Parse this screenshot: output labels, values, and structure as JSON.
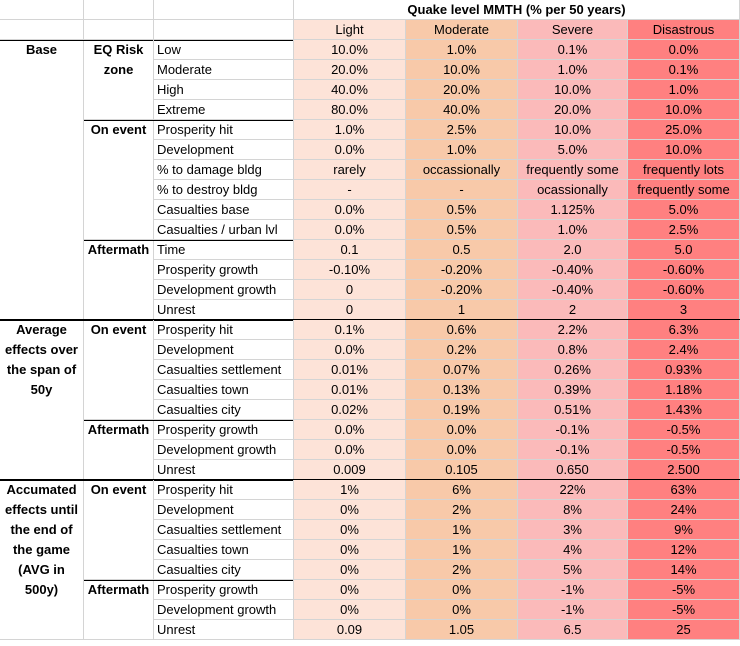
{
  "header": {
    "title": "Quake level MMTH (% per 50 years)",
    "columns": [
      "Light",
      "Moderate",
      "Severe",
      "Disastrous"
    ]
  },
  "sections": [
    {
      "label": "Base",
      "groups": [
        {
          "label": "EQ Risk zone",
          "rows": [
            {
              "label": "Low",
              "cells": [
                "10.0%",
                "1.0%",
                "0.1%",
                "0.0%"
              ]
            },
            {
              "label": "Moderate",
              "cells": [
                "20.0%",
                "10.0%",
                "1.0%",
                "0.1%"
              ]
            },
            {
              "label": "High",
              "cells": [
                "40.0%",
                "20.0%",
                "10.0%",
                "1.0%"
              ]
            },
            {
              "label": "Extreme",
              "cells": [
                "80.0%",
                "40.0%",
                "20.0%",
                "10.0%"
              ]
            }
          ]
        },
        {
          "label": "On event",
          "rows": [
            {
              "label": "Prosperity hit",
              "cells": [
                "1.0%",
                "2.5%",
                "10.0%",
                "25.0%"
              ]
            },
            {
              "label": "Development",
              "cells": [
                "0.0%",
                "1.0%",
                "5.0%",
                "10.0%"
              ]
            },
            {
              "label": "% to damage bldg",
              "cells": [
                "rarely",
                "occassionally",
                "frequently some",
                "frequently lots"
              ]
            },
            {
              "label": "% to destroy bldg",
              "cells": [
                "-",
                "-",
                "ocassionally",
                "frequently some"
              ]
            },
            {
              "label": "Casualties base",
              "cells": [
                "0.0%",
                "0.5%",
                "1.125%",
                "5.0%"
              ]
            },
            {
              "label": "Casualties / urban lvl",
              "cells": [
                "0.0%",
                "0.5%",
                "1.0%",
                "2.5%"
              ]
            }
          ]
        },
        {
          "label": "Aftermath",
          "rows": [
            {
              "label": "Time",
              "cells": [
                "0.1",
                "0.5",
                "2.0",
                "5.0"
              ]
            },
            {
              "label": "Prosperity growth",
              "cells": [
                "-0.10%",
                "-0.20%",
                "-0.40%",
                "-0.60%"
              ]
            },
            {
              "label": "Development growth",
              "cells": [
                "0",
                "-0.20%",
                "-0.40%",
                "-0.60%"
              ]
            },
            {
              "label": "Unrest",
              "cells": [
                "0",
                "1",
                "2",
                "3"
              ]
            }
          ]
        }
      ]
    },
    {
      "label": "Average effects over the span of 50y",
      "groups": [
        {
          "label": "On event",
          "rows": [
            {
              "label": "Prosperity hit",
              "cells": [
                "0.1%",
                "0.6%",
                "2.2%",
                "6.3%"
              ]
            },
            {
              "label": "Development",
              "cells": [
                "0.0%",
                "0.2%",
                "0.8%",
                "2.4%"
              ]
            },
            {
              "label": "Casualties settlement",
              "cells": [
                "0.01%",
                "0.07%",
                "0.26%",
                "0.93%"
              ]
            },
            {
              "label": "Casualties town",
              "cells": [
                "0.01%",
                "0.13%",
                "0.39%",
                "1.18%"
              ]
            },
            {
              "label": "Casualties city",
              "cells": [
                "0.02%",
                "0.19%",
                "0.51%",
                "1.43%"
              ]
            }
          ]
        },
        {
          "label": "Aftermath",
          "rows": [
            {
              "label": "Prosperity growth",
              "cells": [
                "0.0%",
                "0.0%",
                "-0.1%",
                "-0.5%"
              ]
            },
            {
              "label": "Development growth",
              "cells": [
                "0.0%",
                "0.0%",
                "-0.1%",
                "-0.5%"
              ]
            },
            {
              "label": "Unrest",
              "cells": [
                "0.009",
                "0.105",
                "0.650",
                "2.500"
              ]
            }
          ]
        }
      ]
    },
    {
      "label": "Accumated effects until the end of the game (AVG in 500y)",
      "groups": [
        {
          "label": "On event",
          "rows": [
            {
              "label": "Prosperity hit",
              "cells": [
                "1%",
                "6%",
                "22%",
                "63%"
              ]
            },
            {
              "label": "Development",
              "cells": [
                "0%",
                "2%",
                "8%",
                "24%"
              ]
            },
            {
              "label": "Casualties settlement",
              "cells": [
                "0%",
                "1%",
                "3%",
                "9%"
              ]
            },
            {
              "label": "Casualties town",
              "cells": [
                "0%",
                "1%",
                "4%",
                "12%"
              ]
            },
            {
              "label": "Casualties city",
              "cells": [
                "0%",
                "2%",
                "5%",
                "14%"
              ]
            }
          ]
        },
        {
          "label": "Aftermath",
          "rows": [
            {
              "label": "Prosperity growth",
              "cells": [
                "0%",
                "0%",
                "-1%",
                "-5%"
              ]
            },
            {
              "label": "Development growth",
              "cells": [
                "0%",
                "0%",
                "-1%",
                "-5%"
              ]
            },
            {
              "label": "Unrest",
              "cells": [
                "0.09",
                "1.05",
                "6.5",
                "25"
              ]
            }
          ]
        }
      ]
    }
  ]
}
